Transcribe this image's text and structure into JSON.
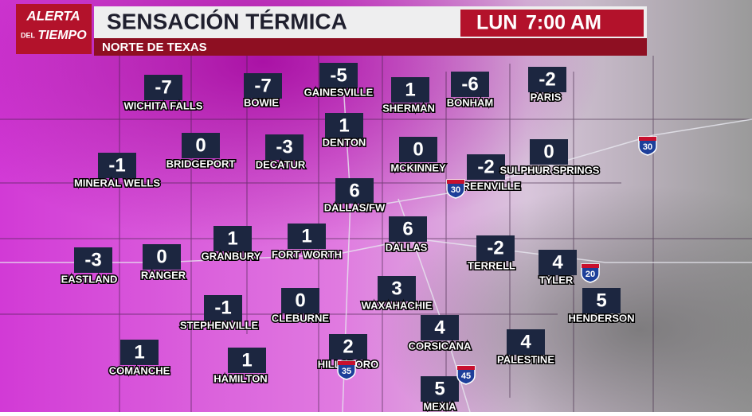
{
  "logo": {
    "line1": "ALERTA",
    "line2": "DEL",
    "line3": "TIEMPO"
  },
  "header": {
    "title": "SENSACIÓN TÉRMICA",
    "subtitle": "NORTE DE TEXAS",
    "day": "LUN",
    "time": "7:00 AM"
  },
  "cities": [
    {
      "name": "WICHITA FALLS",
      "value": -7
    },
    {
      "name": "BOWIE",
      "value": -7
    },
    {
      "name": "GAINESVILLE",
      "value": -5
    },
    {
      "name": "SHERMAN",
      "value": 1
    },
    {
      "name": "BONHAM",
      "value": -6
    },
    {
      "name": "PARIS",
      "value": -2
    },
    {
      "name": "DENTON",
      "value": 1
    },
    {
      "name": "BRIDGEPORT",
      "value": 0
    },
    {
      "name": "DECATUR",
      "value": -3
    },
    {
      "name": "MCKINNEY",
      "value": 0
    },
    {
      "name": "GREENVILLE",
      "value": -2
    },
    {
      "name": "SULPHUR SPRINGS",
      "value": 0
    },
    {
      "name": "MINERAL WELLS",
      "value": -1
    },
    {
      "name": "DALLAS/FW",
      "value": 6
    },
    {
      "name": "FORT WORTH",
      "value": 1
    },
    {
      "name": "GRANBURY",
      "value": 1
    },
    {
      "name": "DALLAS",
      "value": 6
    },
    {
      "name": "TERRELL",
      "value": -2
    },
    {
      "name": "TYLER",
      "value": 4
    },
    {
      "name": "EASTLAND",
      "value": -3
    },
    {
      "name": "RANGER",
      "value": 0
    },
    {
      "name": "STEPHENVILLE",
      "value": -1
    },
    {
      "name": "CLEBURNE",
      "value": 0
    },
    {
      "name": "WAXAHACHIE",
      "value": 3
    },
    {
      "name": "HENDERSON",
      "value": 5
    },
    {
      "name": "CORSICANA",
      "value": 4
    },
    {
      "name": "PALESTINE",
      "value": 4
    },
    {
      "name": "COMANCHE",
      "value": 1
    },
    {
      "name": "HAMILTON",
      "value": 1
    },
    {
      "name": "HILLSBORO",
      "value": 2
    },
    {
      "name": "MEXIA",
      "value": 5
    }
  ],
  "highways": [
    "30",
    "30",
    "20",
    "45",
    "35"
  ]
}
